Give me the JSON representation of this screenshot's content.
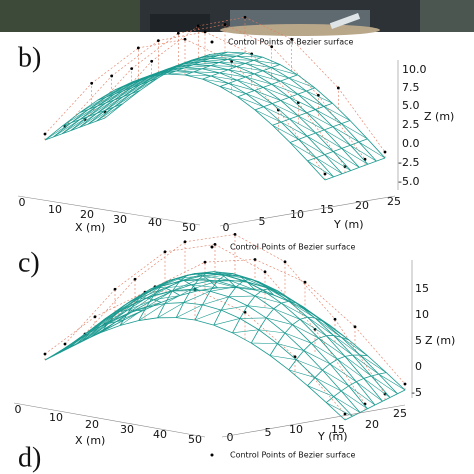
{
  "panels": [
    {
      "label": "b)",
      "legend": "Control Points of Bezier surface",
      "x_axis": {
        "label": "X (m)",
        "ticks": [
          "0",
          "10",
          "20",
          "30",
          "40",
          "50"
        ]
      },
      "y_axis": {
        "label": "Y (m)",
        "ticks": [
          "0",
          "5",
          "10",
          "15",
          "20",
          "25"
        ]
      },
      "z_axis": {
        "label": "Z (m)",
        "ticks": [
          "10.0",
          "7.5",
          "5.0",
          "2.5",
          "0.0",
          "-2.5",
          "-5.0"
        ]
      }
    },
    {
      "label": "c)",
      "legend": "Control Points of Bezier surface",
      "x_axis": {
        "label": "X (m)",
        "ticks": [
          "0",
          "10",
          "20",
          "30",
          "40",
          "50"
        ]
      },
      "y_axis": {
        "label": "Y (m)",
        "ticks": [
          "0",
          "5",
          "10",
          "15",
          "20",
          "25"
        ]
      },
      "z_axis": {
        "label": "Z (m)",
        "ticks": [
          "15",
          "10",
          "5",
          "0",
          "-5"
        ]
      }
    },
    {
      "label": "d)",
      "legend": "Control Points of Bezier surface"
    }
  ]
}
